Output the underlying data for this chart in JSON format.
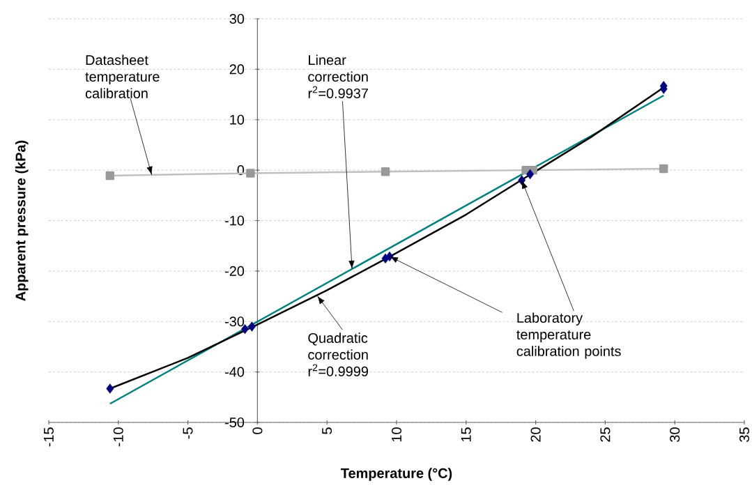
{
  "chart_data": {
    "type": "line",
    "xlabel": "Temperature (°C)",
    "ylabel": "Apparent pressure (kPa)",
    "xlim": [
      -15,
      35
    ],
    "xticks": [
      -15,
      -10,
      -5,
      0,
      5,
      10,
      15,
      20,
      25,
      30,
      35
    ],
    "ylim": [
      -50,
      30
    ],
    "yticks": [
      -50,
      -40,
      -30,
      -20,
      -10,
      0,
      10,
      20,
      30
    ],
    "grid": "y",
    "series": [
      {
        "color": "#c0c0c0",
        "marker": "square",
        "x": [
          -10.6,
          -0.5,
          9.2,
          19.3,
          19.8,
          29.2
        ],
        "values": [
          -1.1,
          -0.6,
          -0.3,
          0,
          0,
          0.3
        ]
      },
      {
        "color": "#008080",
        "marker": "none",
        "x": [
          -10.6,
          29.2
        ],
        "values": [
          -46.3,
          14.8
        ]
      },
      {
        "color": "#000000",
        "marker": "none",
        "x": [
          -10.6,
          -5,
          0,
          5,
          9.4,
          15,
          19.3,
          24,
          29.2
        ],
        "values": [
          -43.3,
          -37.2,
          -30.6,
          -23.8,
          -17.3,
          -8.8,
          -1.4,
          6.6,
          16.4
        ]
      },
      {
        "type": "scatter",
        "color": "#000080",
        "marker": "diamond",
        "x": [
          -10.6,
          -0.9,
          -0.4,
          9.2,
          9.5,
          19.0,
          19.6,
          29.2,
          29.2
        ],
        "values": [
          -43.3,
          -31.5,
          -31.0,
          -17.5,
          -17.1,
          -2.0,
          -0.8,
          16.1,
          16.7
        ]
      }
    ],
    "annotations": [
      {
        "text": "Datasheet temperature calibration",
        "x": -7.6,
        "y": -0.95
      },
      {
        "text": "Linear correction r$^{2}$=0.9937",
        "x": 6.8,
        "y": -19.6
      },
      {
        "text": "Quadratic correction r$^{2}$=0.9999",
        "x": 4.3,
        "y": -24.9
      },
      {
        "text": "Laboratory temperature calibration points",
        "x": 19.0,
        "y": -2.0
      }
    ]
  }
}
